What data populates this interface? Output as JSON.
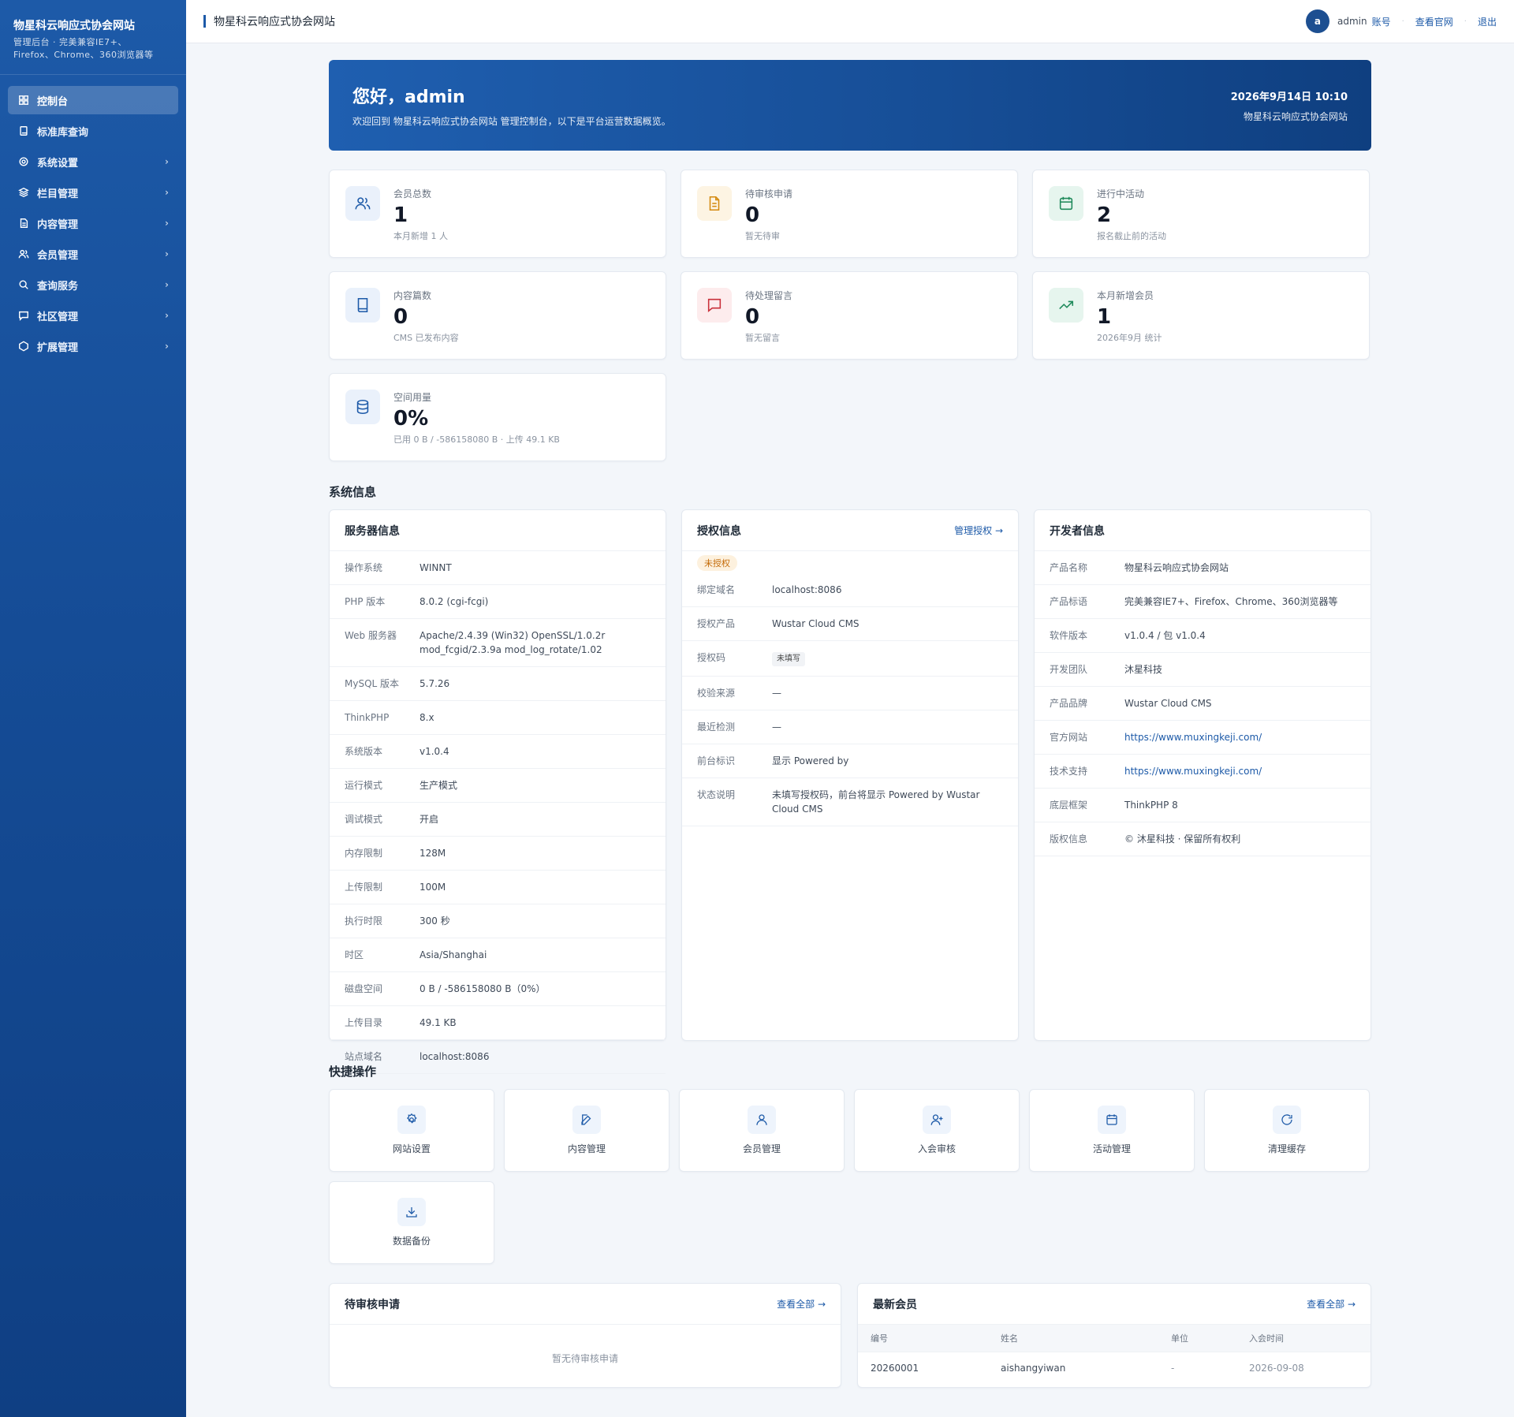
{
  "sidebar": {
    "brand_title": "物星科云响应式协会网站",
    "brand_sub_1": "管理后台 · 完美兼容IE7+、",
    "brand_sub_2": "Firefox、Chrome、360浏览器等",
    "items": [
      {
        "label": "控制台",
        "icon": "dashboard-icon",
        "active": true,
        "arrow": ""
      },
      {
        "label": "标准库查询",
        "icon": "book-icon",
        "arrow": ""
      },
      {
        "label": "系统设置",
        "icon": "gear-icon",
        "arrow": "›"
      },
      {
        "label": "栏目管理",
        "icon": "layers-icon",
        "arrow": "›"
      },
      {
        "label": "内容管理",
        "icon": "document-icon",
        "arrow": "›"
      },
      {
        "label": "会员管理",
        "icon": "users-icon",
        "arrow": "›"
      },
      {
        "label": "查询服务",
        "icon": "search-icon",
        "arrow": "›"
      },
      {
        "label": "社区管理",
        "icon": "chat-icon",
        "arrow": "›"
      },
      {
        "label": "扩展管理",
        "icon": "hexagon-icon",
        "arrow": "›"
      }
    ]
  },
  "topbar": {
    "title": "物星科云响应式协会网站",
    "avatar_letter": "a",
    "username": "admin",
    "account": "账号",
    "view_site": "查看官网",
    "logout": "退出",
    "separator": "·"
  },
  "hero": {
    "greeting": "您好，admin",
    "subtitle": "欢迎回到 物星科云响应式协会网站 管理控制台，以下是平台运营数据概览。",
    "date": "2026年9月14日 10:10",
    "site": "物星科云响应式协会网站"
  },
  "stats": [
    {
      "label": "会员总数",
      "value": "1",
      "desc": "本月新增 1 人",
      "icon": "users-icon",
      "color": "#1d5aa8",
      "bg": "#eaf1fb"
    },
    {
      "label": "待审核申请",
      "value": "0",
      "desc": "暂无待审",
      "icon": "file-icon",
      "color": "#d48a10",
      "bg": "#fdf4e3"
    },
    {
      "label": "进行中活动",
      "value": "2",
      "desc": "报名截止前的活动",
      "icon": "calendar-icon",
      "color": "#1f8a5b",
      "bg": "#e6f5ee"
    },
    {
      "label": "内容篇数",
      "value": "0",
      "desc": "CMS 已发布内容",
      "icon": "book-icon",
      "color": "#1d5aa8",
      "bg": "#eaf1fb"
    },
    {
      "label": "待处理留言",
      "value": "0",
      "desc": "暂无留言",
      "icon": "message-icon",
      "color": "#c9303a",
      "bg": "#fdeced"
    },
    {
      "label": "本月新增会员",
      "value": "1",
      "desc": "2026年9月 统计",
      "icon": "trend-up-icon",
      "color": "#1f8a5b",
      "bg": "#e6f5ee"
    },
    {
      "label": "空间用量",
      "value": "0%",
      "desc": "已用 0 B / -586158080 B · 上传 49.1 KB",
      "icon": "database-icon",
      "color": "#1d5aa8",
      "bg": "#eaf1fb"
    }
  ],
  "system_section_title": "系统信息",
  "server": {
    "title": "服务器信息",
    "rows": [
      {
        "k": "操作系统",
        "v": "WINNT"
      },
      {
        "k": "PHP 版本",
        "v": "8.0.2 (cgi-fcgi)"
      },
      {
        "k": "Web 服务器",
        "v": "Apache/2.4.39 (Win32) OpenSSL/1.0.2r mod_fcgid/2.3.9a mod_log_rotate/1.02"
      },
      {
        "k": "MySQL 版本",
        "v": "5.7.26"
      },
      {
        "k": "ThinkPHP",
        "v": "8.x"
      },
      {
        "k": "系统版本",
        "v": "v1.0.4"
      },
      {
        "k": "运行模式",
        "v": "生产模式"
      },
      {
        "k": "调试模式",
        "v": "开启"
      },
      {
        "k": "内存限制",
        "v": "128M"
      },
      {
        "k": "上传限制",
        "v": "100M"
      },
      {
        "k": "执行时限",
        "v": "300 秒"
      },
      {
        "k": "时区",
        "v": "Asia/Shanghai"
      },
      {
        "k": "磁盘空间",
        "v": "0 B / -586158080 B（0%）"
      },
      {
        "k": "上传目录",
        "v": "49.1 KB"
      },
      {
        "k": "站点域名",
        "v": "localhost:8086"
      }
    ]
  },
  "license": {
    "title": "授权信息",
    "manage_link": "管理授权 →",
    "status_badge": "未授权",
    "rows": [
      {
        "k": "绑定域名",
        "v": "localhost:8086"
      },
      {
        "k": "授权产品",
        "v": "Wustar Cloud CMS"
      },
      {
        "k": "授权码",
        "v": "未填写"
      },
      {
        "k": "校验来源",
        "v": "—"
      },
      {
        "k": "最近检测",
        "v": "—"
      },
      {
        "k": "前台标识",
        "v": "显示 Powered by"
      },
      {
        "k": "状态说明",
        "v": "未填写授权码，前台将显示 Powered by Wustar Cloud CMS"
      }
    ]
  },
  "developer": {
    "title": "开发者信息",
    "rows": [
      {
        "k": "产品名称",
        "v": "物星科云响应式协会网站"
      },
      {
        "k": "产品标语",
        "v": "完美兼容IE7+、Firefox、Chrome、360浏览器等"
      },
      {
        "k": "软件版本",
        "v": "v1.0.4 / 包 v1.0.4"
      },
      {
        "k": "开发团队",
        "v": "沐星科技"
      },
      {
        "k": "产品品牌",
        "v": "Wustar Cloud CMS"
      },
      {
        "k": "官方网站",
        "v": "https://www.muxingkeji.com/"
      },
      {
        "k": "技术支持",
        "v": "https://www.muxingkeji.com/"
      },
      {
        "k": "底层框架",
        "v": "ThinkPHP 8"
      },
      {
        "k": "版权信息",
        "v": "© 沐星科技 · 保留所有权利"
      }
    ]
  },
  "quick_section_title": "快捷操作",
  "quick": [
    {
      "label": "网站设置",
      "icon": "gear-icon"
    },
    {
      "label": "内容管理",
      "icon": "edit-icon"
    },
    {
      "label": "会员管理",
      "icon": "user-icon"
    },
    {
      "label": "入会审核",
      "icon": "user-plus-icon"
    },
    {
      "label": "活动管理",
      "icon": "calendar-icon"
    },
    {
      "label": "清理缓存",
      "icon": "refresh-icon"
    },
    {
      "label": "数据备份",
      "icon": "download-icon"
    }
  ],
  "pending": {
    "title": "待审核申请",
    "view_all": "查看全部 →",
    "empty": "暂无待审核申请"
  },
  "members": {
    "title": "最新会员",
    "view_all": "查看全部 →",
    "columns": [
      "编号",
      "姓名",
      "单位",
      "入会时间"
    ],
    "rows": [
      {
        "id": "20260001",
        "name": "aishangyiwan",
        "unit": "-",
        "joined": "2026-09-08"
      }
    ]
  }
}
